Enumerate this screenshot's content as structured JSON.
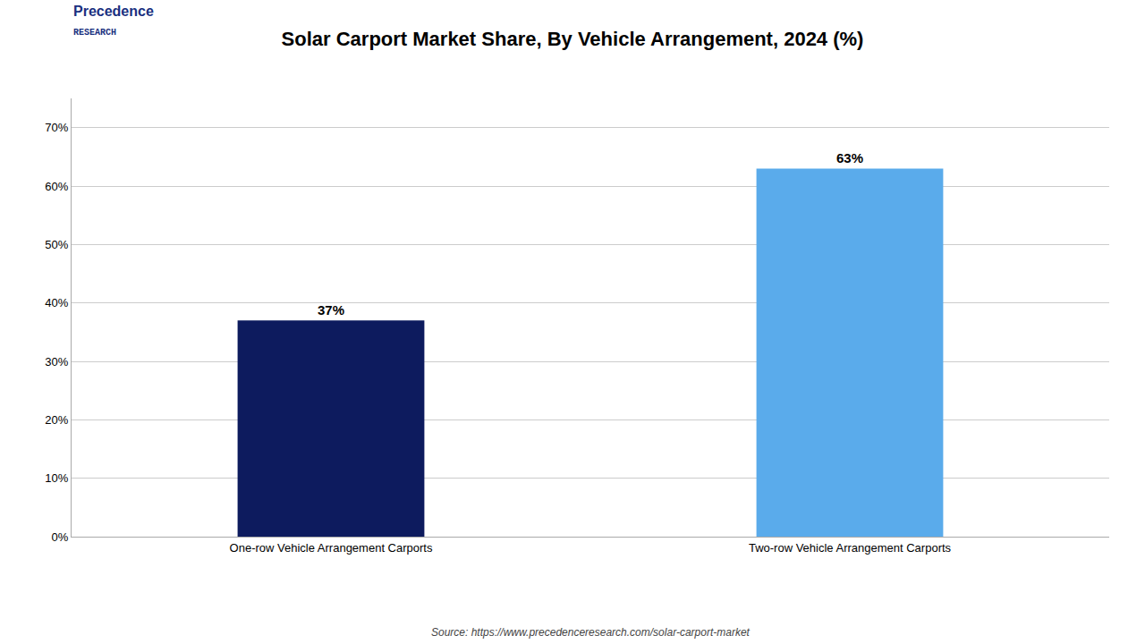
{
  "chart_data": {
    "type": "bar",
    "title": "Solar Carport Market Share, By Vehicle Arrangement, 2024 (%)",
    "categories": [
      "One-row Vehicle Arrangement Carports",
      "Two-row Vehicle Arrangement Carports"
    ],
    "values": [
      37,
      63
    ],
    "value_labels": [
      "37%",
      "63%"
    ],
    "data_labels": true,
    "colors": [
      "#0d1b5e",
      "#5aabeb"
    ],
    "ylim": [
      0,
      75
    ],
    "yticks": [
      {
        "value": 0,
        "label": "0%"
      },
      {
        "value": 10,
        "label": "10%"
      },
      {
        "value": 20,
        "label": "20%"
      },
      {
        "value": 30,
        "label": "30%"
      },
      {
        "value": 40,
        "label": "40%"
      },
      {
        "value": 50,
        "label": "50%"
      },
      {
        "value": 60,
        "label": "60%"
      },
      {
        "value": 70,
        "label": "70%"
      }
    ],
    "grid": true,
    "annotations": [
      "Source: https://www.precedenceresearch.com/solar-carport-market",
      "Precedence",
      "RESEARCH"
    ]
  }
}
